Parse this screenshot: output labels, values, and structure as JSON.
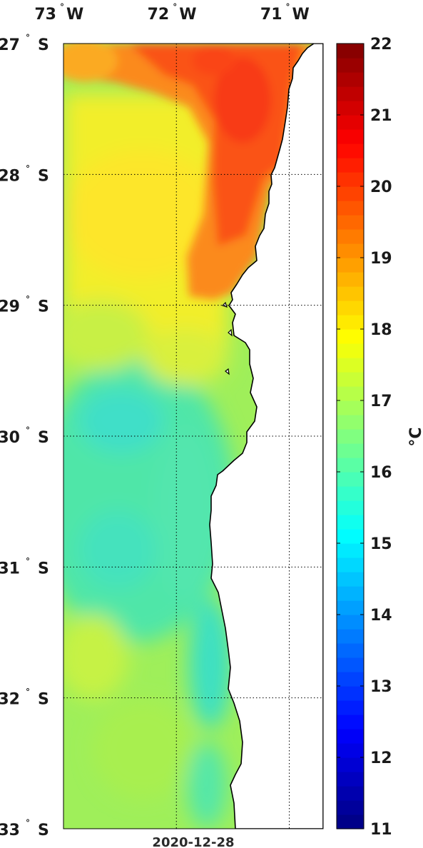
{
  "map": {
    "date": "2020-12-28",
    "lon_ticks": [
      {
        "value": -73,
        "label": "73",
        "hemi": "W"
      },
      {
        "value": -72,
        "label": "72",
        "hemi": "W"
      },
      {
        "value": -71,
        "label": "71",
        "hemi": "W"
      }
    ],
    "lat_ticks": [
      {
        "value": -27,
        "label": "27",
        "hemi": "S"
      },
      {
        "value": -28,
        "label": "28",
        "hemi": "S"
      },
      {
        "value": -29,
        "label": "29",
        "hemi": "S"
      },
      {
        "value": -30,
        "label": "30",
        "hemi": "S"
      },
      {
        "value": -31,
        "label": "31",
        "hemi": "S"
      },
      {
        "value": -32,
        "label": "32",
        "hemi": "S"
      },
      {
        "value": -33,
        "label": "33",
        "hemi": "S"
      }
    ],
    "lon_range": [
      -73,
      -70.7
    ],
    "lat_range": [
      -33,
      -27
    ],
    "grid": "dotted",
    "land_color": "#ffffff",
    "coastline_color": "#000000"
  },
  "colorbar": {
    "min": 11,
    "max": 22,
    "ticks": [
      11,
      12,
      13,
      14,
      15,
      16,
      17,
      18,
      19,
      20,
      21,
      22
    ],
    "unit": "°C",
    "colormap": "jet"
  }
}
